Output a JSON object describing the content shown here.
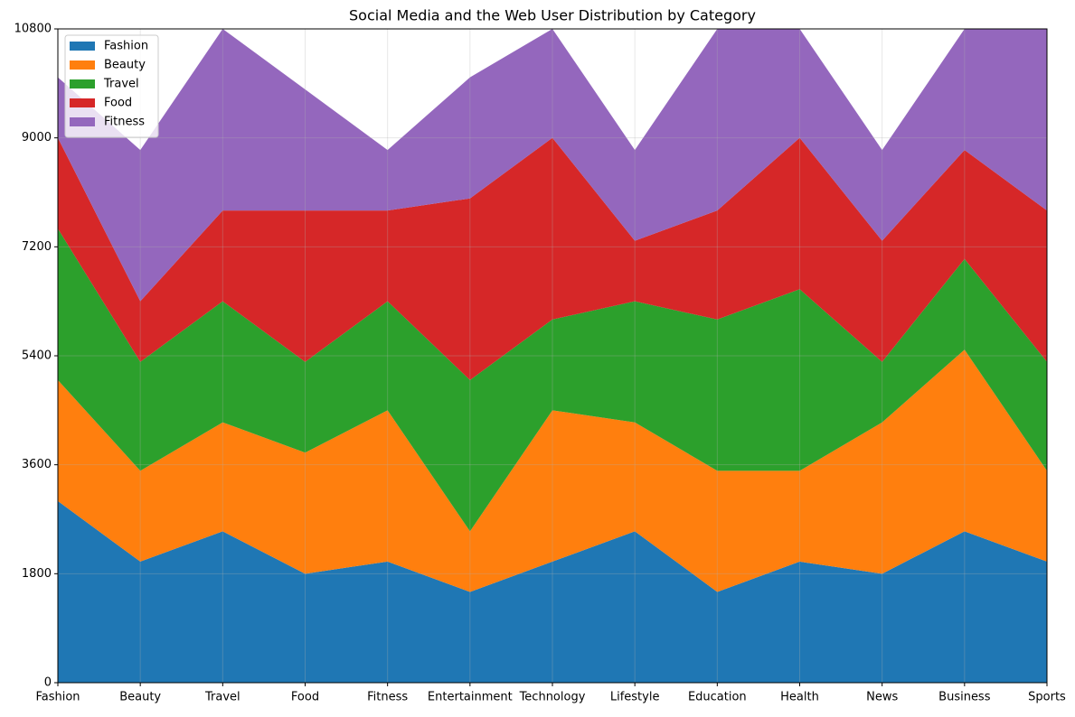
{
  "chart_data": {
    "type": "stacked-area",
    "title": "Social Media and the Web User Distribution by Category",
    "categories": [
      "Fashion",
      "Beauty",
      "Travel",
      "Food",
      "Fitness",
      "Entertainment",
      "Technology",
      "Lifestyle",
      "Education",
      "Health",
      "News",
      "Business",
      "Sports"
    ],
    "series": [
      {
        "name": "Fashion",
        "color": "#1f77b4",
        "values": [
          3000,
          2000,
          2500,
          1800,
          2000,
          1500,
          2000,
          2500,
          1500,
          2000,
          1800,
          2500,
          2000
        ]
      },
      {
        "name": "Beauty",
        "color": "#ff7f0e",
        "values": [
          2000,
          1500,
          1800,
          2000,
          2500,
          1000,
          2500,
          1800,
          2000,
          1500,
          2500,
          3000,
          1500
        ]
      },
      {
        "name": "Travel",
        "color": "#2ca02c",
        "values": [
          2500,
          1800,
          2000,
          1500,
          1800,
          2500,
          1500,
          2000,
          2500,
          3000,
          1000,
          1500,
          1800
        ]
      },
      {
        "name": "Food",
        "color": "#d62728",
        "values": [
          1500,
          1000,
          1500,
          2500,
          1500,
          3000,
          3000,
          1000,
          1800,
          2500,
          2000,
          1800,
          2500
        ]
      },
      {
        "name": "Fitness",
        "color": "#9467bd",
        "values": [
          1000,
          2500,
          3000,
          2000,
          1000,
          2000,
          1800,
          1500,
          3000,
          1800,
          1500,
          2000,
          3000
        ]
      }
    ],
    "ylim": [
      0,
      10800
    ],
    "yticks": [
      0,
      1800,
      3600,
      5400,
      7200,
      9000,
      10800
    ],
    "grid": true,
    "legend": "upper-left"
  }
}
